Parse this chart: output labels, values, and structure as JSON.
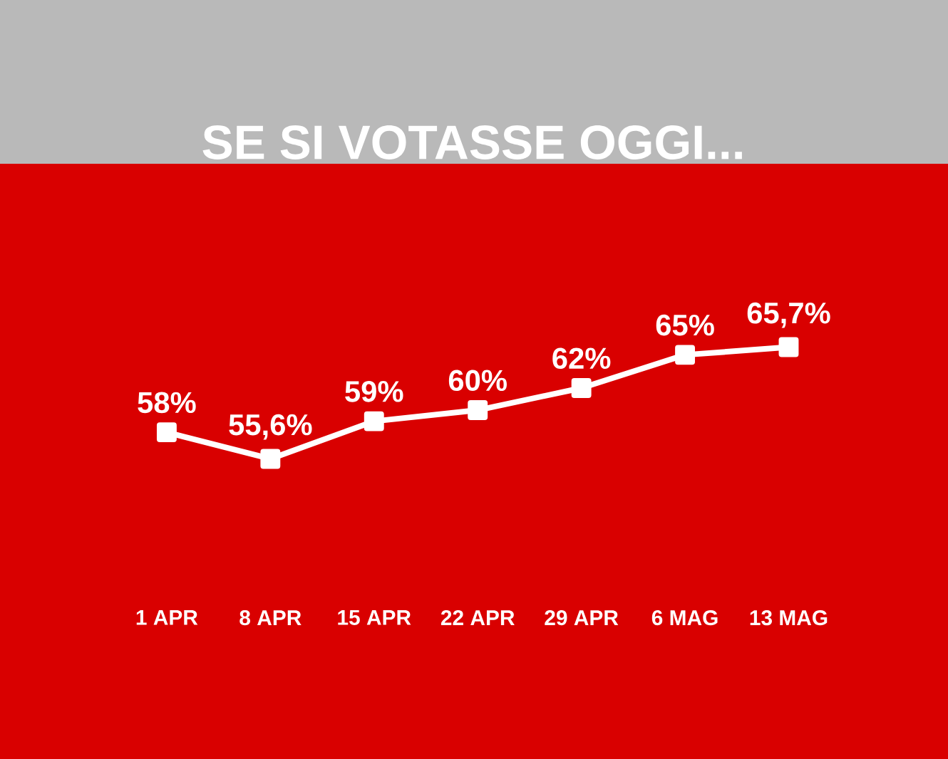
{
  "chart_data": {
    "type": "line",
    "title": "SE SI VOTASSE OGGI...",
    "categories": [
      "1 APR",
      "8 APR",
      "15 APR",
      "22 APR",
      "29 APR",
      "6 MAG",
      "13 MAG"
    ],
    "series": [
      {
        "color": "#ffffff",
        "values": [
          58,
          55.6,
          59,
          60,
          62,
          65,
          65.7
        ],
        "value_labels": [
          "58%",
          "55,6%",
          "59%",
          "60%",
          "62%",
          "65%",
          "65,7%"
        ]
      }
    ],
    "marker": "square",
    "line_style": "solid",
    "tick_labels": "x"
  }
}
